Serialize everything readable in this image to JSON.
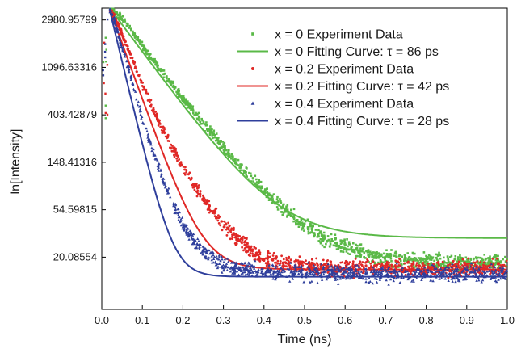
{
  "chart_data": {
    "type": "scatter",
    "title": "",
    "xlabel": "Time (ns)",
    "ylabel": "ln[Intensity]",
    "xlim": [
      0.0,
      1.0
    ],
    "ylim_ln": [
      1.9,
      8.25
    ],
    "y_scale": "log",
    "grid": false,
    "legend_position": "top-right",
    "x_ticks": [
      0.0,
      0.1,
      0.2,
      0.3,
      0.4,
      0.5,
      0.6,
      0.7,
      0.8,
      0.9,
      1.0
    ],
    "x_tick_labels": [
      "0.0",
      "0.1",
      "0.2",
      "0.3",
      "0.4",
      "0.5",
      "0.6",
      "0.7",
      "0.8",
      "0.9",
      "1.0"
    ],
    "y_ticks": [
      20.08554,
      54.59815,
      148.41316,
      403.42879,
      1096.63316,
      2980.95799
    ],
    "y_tick_labels": [
      "20.08554",
      "54.59815",
      "148.41316",
      "403.42879",
      "1096.63316",
      "2980.95799"
    ],
    "series": [
      {
        "name": "x = 0 Experiment Data",
        "kind": "data",
        "marker": "square",
        "color": "#5ab947",
        "points": [
          [
            0.02,
            3800
          ],
          [
            0.03,
            3700
          ],
          [
            0.05,
            3100
          ],
          [
            0.075,
            2350
          ],
          [
            0.1,
            1720
          ],
          [
            0.125,
            1300
          ],
          [
            0.15,
            990
          ],
          [
            0.175,
            750
          ],
          [
            0.2,
            570
          ],
          [
            0.225,
            440
          ],
          [
            0.25,
            335
          ],
          [
            0.275,
            262
          ],
          [
            0.3,
            205
          ],
          [
            0.325,
            158
          ],
          [
            0.35,
            125
          ],
          [
            0.375,
            100
          ],
          [
            0.4,
            82
          ],
          [
            0.425,
            67
          ],
          [
            0.45,
            55
          ],
          [
            0.475,
            46
          ],
          [
            0.5,
            39
          ],
          [
            0.525,
            34
          ],
          [
            0.55,
            30
          ],
          [
            0.575,
            27
          ],
          [
            0.6,
            25
          ],
          [
            0.625,
            23
          ],
          [
            0.65,
            21.5
          ],
          [
            0.675,
            20.5
          ],
          [
            0.7,
            19.8
          ],
          [
            0.75,
            19.0
          ],
          [
            0.8,
            18.5
          ],
          [
            0.85,
            18.2
          ],
          [
            0.9,
            18.0
          ],
          [
            0.95,
            18.0
          ],
          [
            1.0,
            18.0
          ]
        ]
      },
      {
        "name": "x = 0 Fitting Curve: τ = 86 ps",
        "kind": "fit",
        "color": "#5ab947",
        "tau_ns": 0.086,
        "amplitude": 3800,
        "offset": 30,
        "t0_ns": 0.02
      },
      {
        "name": "x = 0.2 Experiment Data",
        "kind": "data",
        "marker": "circle",
        "color": "#e02826",
        "points": [
          [
            0.02,
            3700
          ],
          [
            0.03,
            3300
          ],
          [
            0.05,
            2200
          ],
          [
            0.075,
            1300
          ],
          [
            0.1,
            760
          ],
          [
            0.125,
            470
          ],
          [
            0.15,
            300
          ],
          [
            0.175,
            195
          ],
          [
            0.2,
            135
          ],
          [
            0.225,
            95
          ],
          [
            0.25,
            70
          ],
          [
            0.275,
            52
          ],
          [
            0.3,
            40
          ],
          [
            0.325,
            32
          ],
          [
            0.35,
            26
          ],
          [
            0.375,
            22
          ],
          [
            0.4,
            19.5
          ],
          [
            0.45,
            17.5
          ],
          [
            0.5,
            16.5
          ],
          [
            0.6,
            16.0
          ],
          [
            0.7,
            16.0
          ],
          [
            0.8,
            16.0
          ],
          [
            0.9,
            16.0
          ],
          [
            1.0,
            16.0
          ]
        ]
      },
      {
        "name": "x = 0.2 Fitting Curve: τ = 42 ps",
        "kind": "fit",
        "color": "#e02826",
        "tau_ns": 0.042,
        "amplitude": 3700,
        "offset": 15.5,
        "t0_ns": 0.02
      },
      {
        "name": "x = 0.4 Experiment Data",
        "kind": "data",
        "marker": "triangle",
        "color": "#2f3f9c",
        "points": [
          [
            0.02,
            3600
          ],
          [
            0.03,
            3000
          ],
          [
            0.05,
            1700
          ],
          [
            0.075,
            800
          ],
          [
            0.1,
            370
          ],
          [
            0.125,
            190
          ],
          [
            0.15,
            105
          ],
          [
            0.175,
            62
          ],
          [
            0.2,
            40
          ],
          [
            0.225,
            29
          ],
          [
            0.25,
            23
          ],
          [
            0.275,
            19
          ],
          [
            0.3,
            17
          ],
          [
            0.35,
            15.5
          ],
          [
            0.4,
            15.0
          ],
          [
            0.5,
            14.5
          ],
          [
            0.6,
            14.3
          ],
          [
            0.7,
            14.2
          ],
          [
            0.8,
            14.2
          ],
          [
            0.9,
            14.2
          ],
          [
            1.0,
            14.2
          ]
        ]
      },
      {
        "name": "x = 0.4 Fitting Curve: τ = 28 ps",
        "kind": "fit",
        "color": "#2f3f9c",
        "tau_ns": 0.028,
        "amplitude": 3600,
        "offset": 13.3,
        "t0_ns": 0.02
      }
    ]
  }
}
